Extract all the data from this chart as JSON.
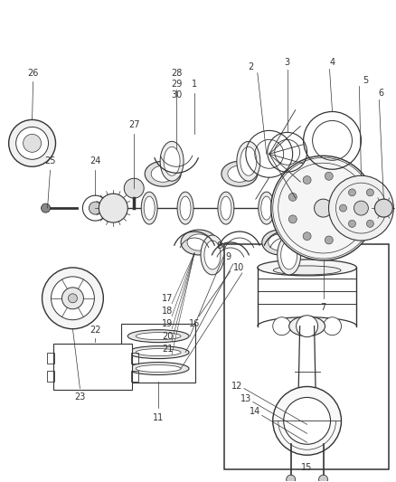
{
  "bg_color": "#ffffff",
  "line_color": "#333333",
  "label_color": "#333333",
  "label_fontsize": 7,
  "figsize": [
    4.38,
    5.33
  ],
  "dpi": 100
}
